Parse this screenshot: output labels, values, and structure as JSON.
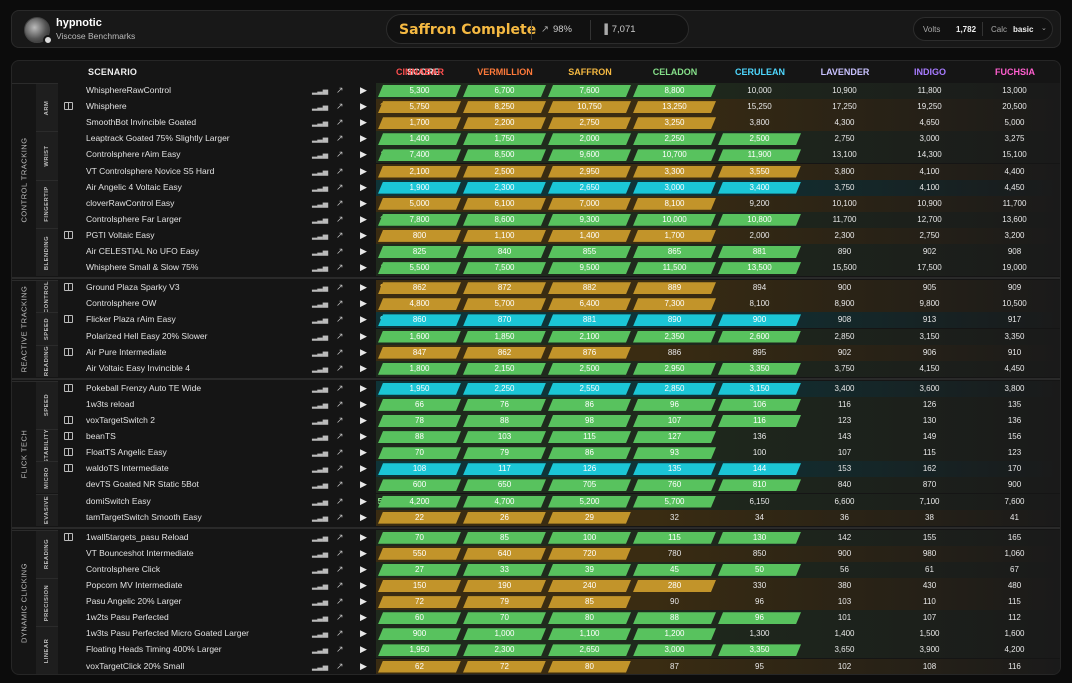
{
  "header": {
    "username": "hypnotic",
    "subtitle": "Viscose Benchmarks",
    "title": "Saffron Complete",
    "progress": "98%",
    "points": "7,071",
    "volts_label": "Volts",
    "volts_value": "1,782",
    "calc_label": "Calc",
    "calc_value": "basic"
  },
  "table": {
    "h_scenario": "SCENARIO",
    "h_score": "SCORE",
    "ranks": [
      {
        "name": "CINNABAR",
        "color": "#ff4f4f"
      },
      {
        "name": "VERMILLION",
        "color": "#ff7a3a"
      },
      {
        "name": "SAFFRON",
        "color": "#f5b942"
      },
      {
        "name": "CELADON",
        "color": "#86e08a"
      },
      {
        "name": "CERULEAN",
        "color": "#4fd8ff"
      },
      {
        "name": "LAVENDER",
        "color": "#c9c2ff"
      },
      {
        "name": "INDIGO",
        "color": "#a77bff"
      },
      {
        "name": "FUCHSIA",
        "color": "#ff5fcf"
      }
    ]
  },
  "colors": {
    "green": "#58c25e",
    "gold": "#c2942a",
    "cyan": "#1bc6d6",
    "bg_green": "#1f2a1d",
    "bg_gold": "#3a2c12",
    "bg_cyan": "#0f3438",
    "score_green": "#8ee88f",
    "score_gold": "#f0b640",
    "score_cyan": "#57e0f0"
  },
  "categories": [
    {
      "name": "CONTROL TRACKING",
      "subs": [
        {
          "name": "ARM",
          "rows": [
            {
              "name": "WhisphereRawControl",
              "score": "9,546",
              "pct": "62%",
              "tier": "green",
              "book": false,
              "fill": 4,
              "t": [
                "5,300",
                "6,700",
                "7,600",
                "8,800",
                "10,000",
                "10,900",
                "11,800",
                "13,000"
              ]
            },
            {
              "name": "Whisphere",
              "score": "12,050",
              "pct": "52%",
              "tier": "gold",
              "book": true,
              "fill": 4,
              "t": [
                "5,750",
                "8,250",
                "10,750",
                "13,250",
                "15,250",
                "17,250",
                "19,250",
                "20,500"
              ]
            },
            {
              "name": "SmoothBot Invincible Goated",
              "score": "3,042",
              "pct": "58%",
              "tier": "gold",
              "book": false,
              "fill": 4,
              "t": [
                "1,700",
                "2,200",
                "2,750",
                "3,250",
                "3,800",
                "4,300",
                "4,650",
                "5,000"
              ]
            }
          ]
        },
        {
          "name": "WRIST",
          "rows": [
            {
              "name": "Leaptrack Goated 75% Slightly Larger",
              "score": "2,253",
              "pct": "1%",
              "tier": "green",
              "book": false,
              "fill": 5,
              "t": [
                "1,400",
                "1,750",
                "2,000",
                "2,250",
                "2,500",
                "2,750",
                "3,000",
                "3,275"
              ]
            },
            {
              "name": "Controlsphere rAim Easy",
              "score": "11,184",
              "pct": "40%",
              "tier": "green",
              "book": false,
              "fill": 5,
              "t": [
                "7,400",
                "8,500",
                "9,600",
                "10,700",
                "11,900",
                "13,100",
                "14,300",
                "15,100"
              ]
            },
            {
              "name": "VT Controlsphere Novice S5 Hard",
              "score": "3,128",
              "pct": "59%",
              "tier": "gold",
              "book": false,
              "fill": 5,
              "t": [
                "2,100",
                "2,500",
                "2,950",
                "3,300",
                "3,550",
                "3,800",
                "4,100",
                "4,400"
              ]
            }
          ]
        },
        {
          "name": "FINGERTIP",
          "rows": [
            {
              "name": "Air Angelic 4 Voltaic Easy",
              "score": "3,439",
              "pct": "11%",
              "tier": "cyan",
              "book": false,
              "fill": 5,
              "t": [
                "1,900",
                "2,300",
                "2,650",
                "3,000",
                "3,400",
                "3,750",
                "4,100",
                "4,450"
              ]
            },
            {
              "name": "cloverRawControl Easy",
              "score": "7,611",
              "pct": "55%",
              "tier": "gold",
              "book": false,
              "fill": 4,
              "t": [
                "5,000",
                "6,100",
                "7,000",
                "8,100",
                "9,200",
                "10,100",
                "10,900",
                "11,700"
              ]
            },
            {
              "name": "Controlsphere Far Larger",
              "score": "10,422",
              "pct": "52%",
              "tier": "green",
              "book": false,
              "fill": 5,
              "t": [
                "7,800",
                "8,600",
                "9,300",
                "10,000",
                "10,800",
                "11,700",
                "12,700",
                "13,600"
              ]
            }
          ]
        },
        {
          "name": "BLENDING",
          "rows": [
            {
              "name": "PGTI Voltaic Easy",
              "score": "1,458",
              "pct": "19%",
              "tier": "gold",
              "book": true,
              "fill": 4,
              "t": [
                "800",
                "1,100",
                "1,400",
                "1,700",
                "2,000",
                "2,300",
                "2,750",
                "3,200"
              ]
            },
            {
              "name": "Air CELESTIAL No UFO Easy",
              "score": "874.4",
              "pct": "58%",
              "tier": "green",
              "book": false,
              "fill": 5,
              "t": [
                "825",
                "840",
                "855",
                "865",
                "881",
                "890",
                "902",
                "908"
              ]
            },
            {
              "name": "Whisphere Small & Slow 75%",
              "score": "11,600",
              "pct": "5%",
              "tier": "green",
              "book": false,
              "fill": 5,
              "t": [
                "5,500",
                "7,500",
                "9,500",
                "11,500",
                "13,500",
                "15,500",
                "17,500",
                "19,000"
              ]
            }
          ]
        }
      ]
    },
    {
      "name": "REACTIVE TRACKING",
      "subs": [
        {
          "name": "CONTROL",
          "rows": [
            {
              "name": "Ground Plaza Sparky V3",
              "score": "886.63",
              "pct": "77%",
              "tier": "gold",
              "book": true,
              "fill": 4,
              "t": [
                "862",
                "872",
                "882",
                "889",
                "894",
                "900",
                "905",
                "909"
              ]
            },
            {
              "name": "Controlsphere OW",
              "score": "6,972",
              "pct": "63%",
              "tier": "gold",
              "book": false,
              "fill": 4,
              "t": [
                "4,800",
                "5,700",
                "6,400",
                "7,300",
                "8,100",
                "8,900",
                "9,800",
                "10,500"
              ]
            }
          ]
        },
        {
          "name": "SPEED",
          "rows": [
            {
              "name": "Flicker Plaza rAim Easy",
              "score": "900.37",
              "pct": "4%",
              "tier": "cyan",
              "book": true,
              "fill": 5,
              "t": [
                "860",
                "870",
                "881",
                "890",
                "900",
                "908",
                "913",
                "917"
              ]
            },
            {
              "name": "Polarized Hell Easy 20% Slower",
              "score": "2,382",
              "pct": "12%",
              "tier": "green",
              "book": false,
              "fill": 5,
              "t": [
                "1,600",
                "1,850",
                "2,100",
                "2,350",
                "2,600",
                "2,850",
                "3,150",
                "3,350"
              ]
            }
          ]
        },
        {
          "name": "READING",
          "rows": [
            {
              "name": "Air Pure Intermediate",
              "score": "879.6",
              "pct": "36%",
              "tier": "gold",
              "book": true,
              "fill": 3,
              "t": [
                "847",
                "862",
                "876",
                "886",
                "895",
                "902",
                "906",
                "910"
              ]
            },
            {
              "name": "Air Voltaic Easy Invincible 4",
              "score": "3,139",
              "pct": "47%",
              "tier": "green",
              "book": false,
              "fill": 5,
              "t": [
                "1,800",
                "2,150",
                "2,500",
                "2,950",
                "3,350",
                "3,750",
                "4,150",
                "4,450"
              ]
            }
          ]
        }
      ]
    },
    {
      "name": "FLICK TECH",
      "subs": [
        {
          "name": "SPEED",
          "rows": [
            {
              "name": "Pokeball Frenzy Auto TE Wide",
              "score": "3,180",
              "pct": "12%",
              "tier": "cyan",
              "book": true,
              "fill": 5,
              "t": [
                "1,950",
                "2,250",
                "2,550",
                "2,850",
                "3,150",
                "3,400",
                "3,600",
                "3,800"
              ]
            },
            {
              "name": "1w3ts reload",
              "score": "104",
              "pct": "80%",
              "tier": "green",
              "book": false,
              "fill": 5,
              "t": [
                "66",
                "76",
                "86",
                "96",
                "106",
                "116",
                "126",
                "135"
              ]
            },
            {
              "name": "voxTargetSwitch 2",
              "score": "108",
              "pct": "11%",
              "tier": "green",
              "book": true,
              "fill": 5,
              "t": [
                "78",
                "88",
                "98",
                "107",
                "116",
                "123",
                "130",
                "136"
              ]
            }
          ]
        },
        {
          "name": "STABILITY",
          "rows": [
            {
              "name": "beanTS",
              "score": "130",
              "pct": "33%",
              "tier": "green",
              "book": true,
              "fill": 4,
              "t": [
                "88",
                "103",
                "115",
                "127",
                "136",
                "143",
                "149",
                "156"
              ]
            },
            {
              "name": "FloatTS Angelic Easy",
              "score": "98.9",
              "pct": "84%",
              "tier": "green",
              "book": true,
              "fill": 4,
              "t": [
                "70",
                "79",
                "86",
                "93",
                "100",
                "107",
                "115",
                "123"
              ]
            }
          ]
        },
        {
          "name": "MICRO",
          "rows": [
            {
              "name": "waldoTS Intermediate",
              "score": "145.5",
              "pct": "16%",
              "tier": "cyan",
              "book": true,
              "fill": 5,
              "t": [
                "108",
                "117",
                "126",
                "135",
                "144",
                "153",
                "162",
                "170"
              ]
            },
            {
              "name": "devTS Goated NR Static 5Bot",
              "score": "774",
              "pct": "28%",
              "tier": "green",
              "book": false,
              "fill": 5,
              "t": [
                "600",
                "650",
                "705",
                "760",
                "810",
                "840",
                "870",
                "900"
              ]
            }
          ]
        },
        {
          "name": "EVASIVE",
          "rows": [
            {
              "name": "domiSwitch Easy",
              "score": "5,804.8",
              "pct": "23%",
              "tier": "green",
              "book": false,
              "fill": 4,
              "t": [
                "4,200",
                "4,700",
                "5,200",
                "5,700",
                "6,150",
                "6,600",
                "7,100",
                "7,600"
              ]
            },
            {
              "name": "tamTargetSwitch Smooth Easy",
              "score": "30",
              "pct": "33%",
              "tier": "gold",
              "book": false,
              "fill": 3,
              "t": [
                "22",
                "26",
                "29",
                "32",
                "34",
                "36",
                "38",
                "41"
              ]
            }
          ]
        }
      ]
    },
    {
      "name": "DYNAMIC CLICKING",
      "subs": [
        {
          "name": "READING",
          "rows": [
            {
              "name": "1wall5targets_pasu Reload",
              "score": "126",
              "pct": "73%",
              "tier": "green",
              "book": true,
              "fill": 5,
              "t": [
                "70",
                "85",
                "100",
                "115",
                "130",
                "142",
                "155",
                "165"
              ]
            },
            {
              "name": "VT Bounceshot Intermediate",
              "score": "730",
              "pct": "16%",
              "tier": "gold",
              "book": false,
              "fill": 3,
              "t": [
                "550",
                "640",
                "720",
                "780",
                "850",
                "900",
                "980",
                "1,060"
              ]
            },
            {
              "name": "Controlsphere Click",
              "score": "47",
              "pct": "40%",
              "tier": "green",
              "book": false,
              "fill": 5,
              "t": [
                "27",
                "33",
                "39",
                "45",
                "50",
                "56",
                "61",
                "67"
              ]
            }
          ]
        },
        {
          "name": "PRECISION",
          "rows": [
            {
              "name": "Popcorn MV Intermediate",
              "score": "270",
              "pct": "75%",
              "tier": "gold",
              "book": false,
              "fill": 4,
              "t": [
                "150",
                "190",
                "240",
                "280",
                "330",
                "380",
                "430",
                "480"
              ]
            },
            {
              "name": "Pasu Angelic 20% Larger",
              "score": "86",
              "pct": "20%",
              "tier": "gold",
              "book": false,
              "fill": 3,
              "t": [
                "72",
                "79",
                "85",
                "90",
                "96",
                "103",
                "110",
                "115"
              ]
            },
            {
              "name": "1w2ts Pasu Perfected",
              "score": "94",
              "pct": "75%",
              "tier": "green",
              "book": false,
              "fill": 5,
              "t": [
                "60",
                "70",
                "80",
                "88",
                "96",
                "101",
                "107",
                "112"
              ]
            }
          ]
        },
        {
          "name": "LINEAR",
          "rows": [
            {
              "name": "1w3ts Pasu Perfected Micro Goated Larger",
              "score": "1,232",
              "pct": "32%",
              "tier": "green",
              "book": false,
              "fill": 4,
              "t": [
                "900",
                "1,000",
                "1,100",
                "1,200",
                "1,300",
                "1,400",
                "1,500",
                "1,600"
              ]
            },
            {
              "name": "Floating Heads Timing 400% Larger",
              "score": "3,312",
              "pct": "89%",
              "tier": "green",
              "book": false,
              "fill": 5,
              "t": [
                "1,950",
                "2,300",
                "2,650",
                "3,000",
                "3,350",
                "3,650",
                "3,900",
                "4,200"
              ]
            },
            {
              "name": "voxTargetClick 20% Small",
              "score": "81",
              "pct": "14%",
              "tier": "gold",
              "book": false,
              "fill": 3,
              "t": [
                "62",
                "72",
                "80",
                "87",
                "95",
                "102",
                "108",
                "116"
              ]
            }
          ]
        }
      ]
    }
  ]
}
